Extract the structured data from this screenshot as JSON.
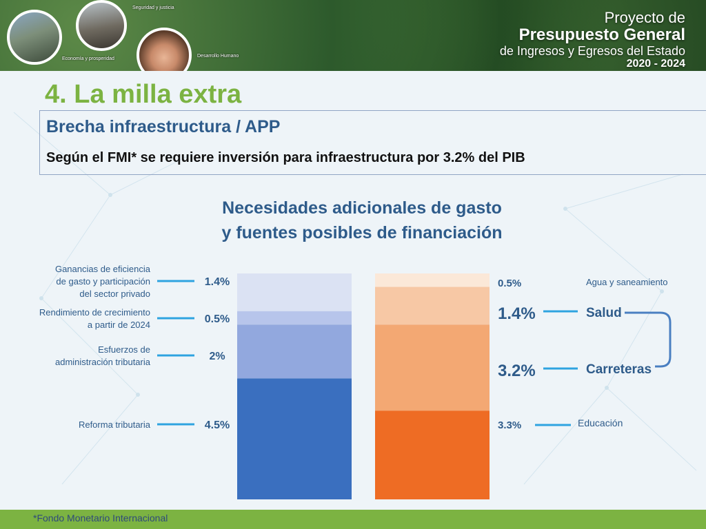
{
  "banner": {
    "labels": {
      "economia": "Economía y prosperidad",
      "seguridad": "Seguridad y justicia",
      "desarrollo": "Desarrollo Humano"
    },
    "project": {
      "line1": "Proyecto de",
      "line2": "Presupuesto General",
      "line3": "de Ingresos y Egresos del Estado",
      "line4": "2020 - 2024"
    }
  },
  "header": {
    "title": "4. La milla extra",
    "subtitle": "Brecha infraestructura / APP",
    "statement": "Según el FMI* se requiere inversión para infraestructura por 3.2% del PIB"
  },
  "chart_data": {
    "type": "bar",
    "stacked": true,
    "title_line1": "Necesidades adicionales de gasto",
    "title_line2": "y fuentes posibles de financiación",
    "ymax": 8.4,
    "bars": [
      {
        "side": "left",
        "segments": [
          {
            "name": "Reforma tributaria",
            "value": 4.5,
            "label": "4.5%",
            "color": "#3a6fbf"
          },
          {
            "name": "Esfuerzos de administración tributaria",
            "value": 2.0,
            "label": "2%",
            "color": "#92a8de"
          },
          {
            "name": "Rendimiento de crecimiento a partir de 2024",
            "value": 0.5,
            "label": "0.5%",
            "color": "#b7c5eb"
          },
          {
            "name": "Ganancias de eficiencia de gasto y participación del sector privado",
            "value": 1.4,
            "label": "1.4%",
            "color": "#dbe2f3"
          }
        ],
        "category_labels": [
          [
            "Reforma tributaria"
          ],
          [
            "Esfuerzos de",
            "administración tributaria"
          ],
          [
            "Rendimiento de crecimiento",
            "a partir de 2024"
          ],
          [
            "Ganancias de eficiencia",
            "de gasto y participación",
            "del sector privado"
          ]
        ]
      },
      {
        "side": "right",
        "segments": [
          {
            "name": "Educación",
            "value": 3.3,
            "label": "3.3%",
            "color": "#ee6c24"
          },
          {
            "name": "Carreteras",
            "value": 3.2,
            "label": "3.2%",
            "color": "#f3a873"
          },
          {
            "name": "Salud",
            "value": 1.4,
            "label": "1.4%",
            "color": "#f7c8a5"
          },
          {
            "name": "Agua y saneamiento",
            "value": 0.5,
            "label": "0.5%",
            "color": "#fbe8d8"
          }
        ]
      }
    ]
  },
  "footer": {
    "note": "*Fondo Monetario Internacional"
  },
  "colors": {
    "accent_green": "#7cb342",
    "title_blue": "#2e5b8a",
    "leader_blue": "#2ea3e0",
    "bracket_blue": "#4a7fc1"
  }
}
